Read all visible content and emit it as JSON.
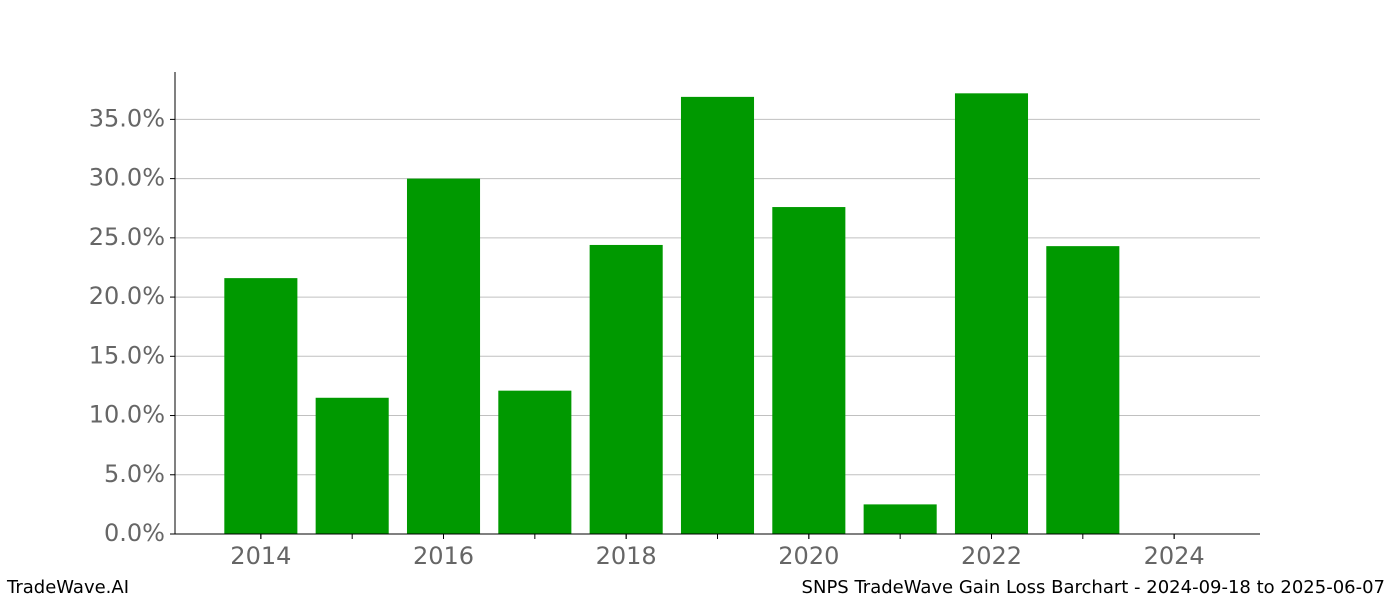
{
  "chart_data": {
    "type": "bar",
    "x": [
      2014,
      2015,
      2016,
      2017,
      2018,
      2019,
      2020,
      2021,
      2022,
      2023,
      2024
    ],
    "values": [
      21.6,
      11.5,
      30.0,
      12.1,
      24.4,
      36.9,
      27.6,
      2.5,
      37.2,
      24.3,
      0
    ],
    "color": "#009900",
    "xlim": [
      2013.06,
      2024.94
    ],
    "xticks": [
      2014,
      2016,
      2018,
      2020,
      2022,
      2024
    ],
    "ylim": [
      0,
      39
    ],
    "yticks": [
      {
        "value": 0,
        "label": "0.0%"
      },
      {
        "value": 5,
        "label": "5.0%"
      },
      {
        "value": 10,
        "label": "10.0%"
      },
      {
        "value": 15,
        "label": "15.0%"
      },
      {
        "value": 20,
        "label": "20.0%"
      },
      {
        "value": 25,
        "label": "25.0%"
      },
      {
        "value": 30,
        "label": "30.0%"
      },
      {
        "value": 35,
        "label": "35.0%"
      }
    ],
    "grid": true
  },
  "footer": {
    "left": "TradeWave.AI",
    "right": "SNPS TradeWave Gain Loss Barchart - 2024-09-18 to 2025-06-07"
  }
}
